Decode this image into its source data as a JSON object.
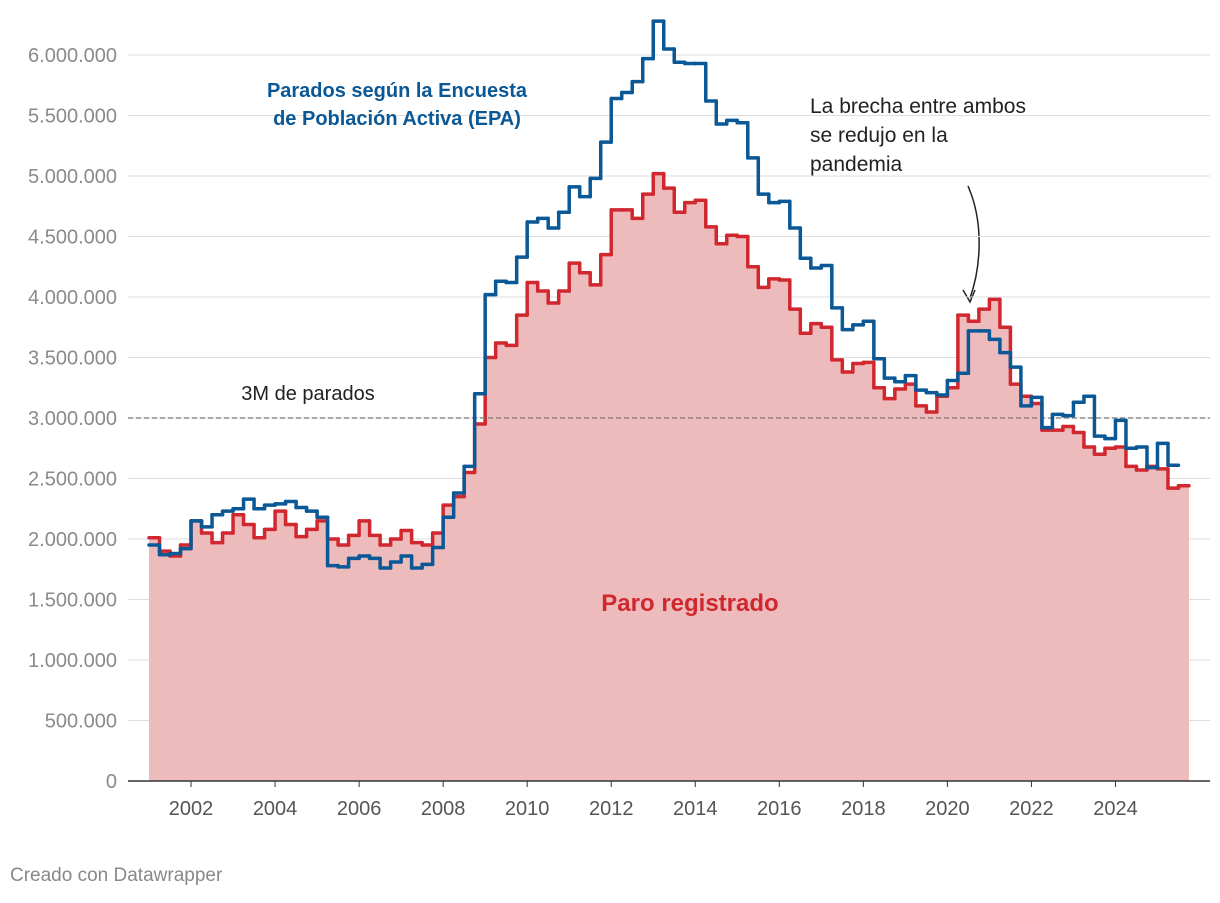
{
  "chart_data": {
    "type": "step",
    "series": [
      {
        "name": [
          "Parados según la Encuesta",
          "de Población Activa (EPA)"
        ],
        "color": "#0a5896",
        "x": [
          2001,
          2001.25,
          2001.5,
          2001.75,
          2002,
          2002.25,
          2002.5,
          2002.75,
          2003,
          2003.25,
          2003.5,
          2003.75,
          2004,
          2004.25,
          2004.5,
          2004.75,
          2005,
          2005.25,
          2005.5,
          2005.75,
          2006,
          2006.25,
          2006.5,
          2006.75,
          2007,
          2007.25,
          2007.5,
          2007.75,
          2008,
          2008.25,
          2008.5,
          2008.75,
          2009,
          2009.25,
          2009.5,
          2009.75,
          2010,
          2010.25,
          2010.5,
          2010.75,
          2011,
          2011.25,
          2011.5,
          2011.75,
          2012,
          2012.25,
          2012.5,
          2012.75,
          2013,
          2013.25,
          2013.5,
          2013.75,
          2014,
          2014.25,
          2014.5,
          2014.75,
          2015,
          2015.25,
          2015.5,
          2015.75,
          2016,
          2016.25,
          2016.5,
          2016.75,
          2017,
          2017.25,
          2017.5,
          2017.75,
          2018,
          2018.25,
          2018.5,
          2018.75,
          2019,
          2019.25,
          2019.5,
          2019.75,
          2020,
          2020.25,
          2020.5,
          2020.75,
          2021,
          2021.25,
          2021.5,
          2021.75,
          2022,
          2022.25,
          2022.5,
          2022.75,
          2023,
          2023.25,
          2023.5,
          2023.75,
          2024,
          2024.25,
          2024.5,
          2024.75,
          2025,
          2025.25
        ],
        "values": [
          1950000,
          1870000,
          1880000,
          1920000,
          2150000,
          2100000,
          2200000,
          2230000,
          2250000,
          2330000,
          2250000,
          2280000,
          2290000,
          2310000,
          2260000,
          2230000,
          2180000,
          1780000,
          1770000,
          1840000,
          1860000,
          1840000,
          1760000,
          1810000,
          1860000,
          1760000,
          1790000,
          1930000,
          2180000,
          2380000,
          2600000,
          3200000,
          4020000,
          4130000,
          4120000,
          4330000,
          4620000,
          4650000,
          4570000,
          4700000,
          4910000,
          4830000,
          4980000,
          5280000,
          5640000,
          5690000,
          5780000,
          5970000,
          6280000,
          6050000,
          5940000,
          5930000,
          5930000,
          5620000,
          5430000,
          5460000,
          5440000,
          5150000,
          4850000,
          4780000,
          4790000,
          4570000,
          4320000,
          4240000,
          4260000,
          3910000,
          3730000,
          3770000,
          3800000,
          3490000,
          3330000,
          3300000,
          3350000,
          3230000,
          3210000,
          3190000,
          3310000,
          3370000,
          3720000,
          3720000,
          3650000,
          3540000,
          3420000,
          3100000,
          3170000,
          2920000,
          3030000,
          3020000,
          3130000,
          3180000,
          2850000,
          2830000,
          2980000,
          2750000,
          2760000,
          2590000,
          2790000,
          2610000
        ]
      },
      {
        "name": "Paro registrado",
        "color": "#d0282e",
        "fill": "#eebbbc",
        "x": [
          2001,
          2001.25,
          2001.5,
          2001.75,
          2002,
          2002.25,
          2002.5,
          2002.75,
          2003,
          2003.25,
          2003.5,
          2003.75,
          2004,
          2004.25,
          2004.5,
          2004.75,
          2005,
          2005.25,
          2005.5,
          2005.75,
          2006,
          2006.25,
          2006.5,
          2006.75,
          2007,
          2007.25,
          2007.5,
          2007.75,
          2008,
          2008.25,
          2008.5,
          2008.75,
          2009,
          2009.25,
          2009.5,
          2009.75,
          2010,
          2010.25,
          2010.5,
          2010.75,
          2011,
          2011.25,
          2011.5,
          2011.75,
          2012,
          2012.25,
          2012.5,
          2012.75,
          2013,
          2013.25,
          2013.5,
          2013.75,
          2014,
          2014.25,
          2014.5,
          2014.75,
          2015,
          2015.25,
          2015.5,
          2015.75,
          2016,
          2016.25,
          2016.5,
          2016.75,
          2017,
          2017.25,
          2017.5,
          2017.75,
          2018,
          2018.25,
          2018.5,
          2018.75,
          2019,
          2019.25,
          2019.5,
          2019.75,
          2020,
          2020.25,
          2020.5,
          2020.75,
          2021,
          2021.25,
          2021.5,
          2021.75,
          2022,
          2022.25,
          2022.5,
          2022.75,
          2023,
          2023.25,
          2023.5,
          2023.75,
          2024,
          2024.25,
          2024.5,
          2024.75,
          2025,
          2025.25,
          2025.5
        ],
        "values": [
          2010000,
          1900000,
          1860000,
          1950000,
          2150000,
          2050000,
          1970000,
          2050000,
          2200000,
          2120000,
          2010000,
          2080000,
          2230000,
          2120000,
          2020000,
          2080000,
          2150000,
          2000000,
          1950000,
          2030000,
          2150000,
          2030000,
          1950000,
          2000000,
          2070000,
          1970000,
          1950000,
          2050000,
          2280000,
          2350000,
          2550000,
          2950000,
          3500000,
          3620000,
          3600000,
          3850000,
          4120000,
          4050000,
          3950000,
          4050000,
          4280000,
          4200000,
          4100000,
          4350000,
          4720000,
          4720000,
          4650000,
          4850000,
          5020000,
          4900000,
          4700000,
          4780000,
          4800000,
          4580000,
          4440000,
          4510000,
          4500000,
          4250000,
          4080000,
          4150000,
          4140000,
          3900000,
          3700000,
          3780000,
          3750000,
          3480000,
          3380000,
          3450000,
          3460000,
          3250000,
          3160000,
          3240000,
          3280000,
          3100000,
          3050000,
          3180000,
          3250000,
          3850000,
          3800000,
          3900000,
          3980000,
          3750000,
          3280000,
          3180000,
          3120000,
          2900000,
          2900000,
          2930000,
          2880000,
          2760000,
          2700000,
          2750000,
          2760000,
          2600000,
          2570000,
          2600000,
          2580000,
          2420000,
          2440000
        ]
      }
    ],
    "xlim": [
      2000.5,
      2026.25
    ],
    "xticks": [
      2002,
      2004,
      2006,
      2008,
      2010,
      2012,
      2014,
      2016,
      2018,
      2020,
      2022,
      2024
    ],
    "ylim": [
      0,
      6000000
    ],
    "yticks": [
      0,
      {
        "value": 500000,
        "label": "500.000"
      },
      {
        "value": 1000000,
        "label": "1.000.000"
      },
      {
        "value": 1500000,
        "label": "1.500.000"
      },
      {
        "value": 2000000,
        "label": "2.000.000"
      },
      {
        "value": 2500000,
        "label": "2.500.000"
      },
      {
        "value": 3000000,
        "label": "3.000.000"
      },
      {
        "value": 3500000,
        "label": "3.500.000"
      },
      {
        "value": 4000000,
        "label": "4.000.000"
      },
      {
        "value": 4500000,
        "label": "4.500.000"
      },
      {
        "value": 5000000,
        "label": "5.000.000"
      },
      {
        "value": 5500000,
        "label": "5.500.000"
      },
      {
        "value": 6000000,
        "label": "6.000.000"
      }
    ],
    "grid": true,
    "reference_line": {
      "value": 3000000,
      "label": "3M de parados"
    },
    "annotation": [
      "La brecha entre ambos",
      "se redujo en la",
      "pandemia"
    ],
    "footer": "Creado con Datawrapper"
  }
}
